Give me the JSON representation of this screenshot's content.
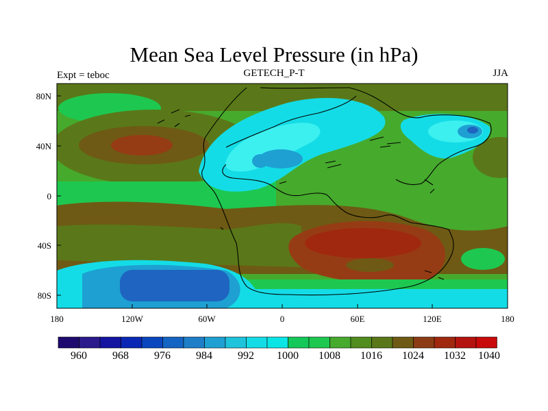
{
  "title": "Mean Sea Level Pressure (in hPa)",
  "subtitle_left": "Expt = teboc",
  "subtitle_center": "GETECH_P-T",
  "subtitle_right": "JJA",
  "x_ticks": [
    "180",
    "120W",
    "60W",
    "0",
    "60E",
    "120E",
    "180"
  ],
  "y_ticks": [
    "80N",
    "40N",
    "0",
    "40S",
    "80S"
  ],
  "colorbar": {
    "colors": [
      "#1e0a6e",
      "#2a1a8c",
      "#1414a0",
      "#0a28b4",
      "#0a46be",
      "#1464c3",
      "#1e7ec8",
      "#1ea0d2",
      "#1ec3dc",
      "#14dce6",
      "#0ae6e6",
      "#14c85a",
      "#1ec850",
      "#46aa2d",
      "#508c1e",
      "#5a7819",
      "#6e5a14",
      "#8c3c14",
      "#a0280f",
      "#b4140f",
      "#c80a0a"
    ],
    "labels": [
      "960",
      "968",
      "976",
      "984",
      "992",
      "1000",
      "1008",
      "1016",
      "1024",
      "1032",
      "1040"
    ]
  },
  "colors": {
    "deep_blue": "#1e64c0",
    "mid_blue": "#1ea0d2",
    "cyan": "#14dce6",
    "light_cyan": "#3cf0f0",
    "light_green": "#1ec850",
    "green": "#46aa2d",
    "olive": "#5a7819",
    "brown": "#6e5a14",
    "red_brown": "#963c14",
    "dark_red": "#a0280f"
  }
}
